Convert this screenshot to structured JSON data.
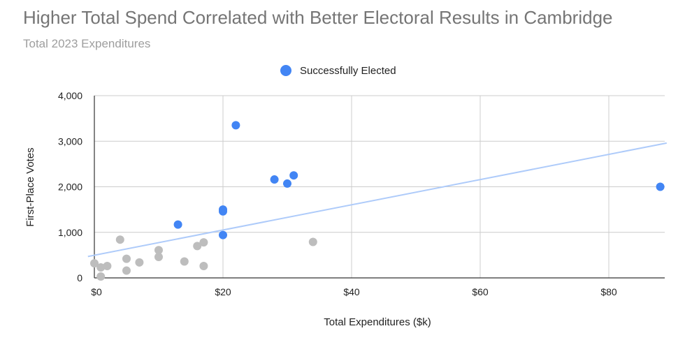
{
  "chart_data": {
    "type": "scatter",
    "title": "Higher Total Spend Correlated with Better Electoral Results in Cambridge",
    "subtitle": "Total 2023 Expenditures",
    "xlabel": "Total Expenditures ($k)",
    "ylabel": "First-Place Votes",
    "xlim": [
      0,
      89
    ],
    "ylim": [
      0,
      4000
    ],
    "x_ticks": [
      0,
      20,
      40,
      60,
      80
    ],
    "x_tick_labels": [
      "$0",
      "$20",
      "$40",
      "$60",
      "$80"
    ],
    "y_ticks": [
      0,
      1000,
      2000,
      3000,
      4000
    ],
    "y_tick_labels": [
      "0",
      "1,000",
      "2,000",
      "3,000",
      "4,000"
    ],
    "grid": true,
    "legend_position": "top",
    "legend": [
      {
        "name": "Successfully Elected",
        "color": "#4285f4"
      }
    ],
    "series": [
      {
        "name": "Successfully Elected",
        "color": "#4285f4",
        "points": [
          {
            "x": 22,
            "y": 3350
          },
          {
            "x": 31,
            "y": 2250
          },
          {
            "x": 28,
            "y": 2160
          },
          {
            "x": 30,
            "y": 2070
          },
          {
            "x": 88,
            "y": 2000
          },
          {
            "x": 20,
            "y": 1500
          },
          {
            "x": 20,
            "y": 1460
          },
          {
            "x": 13,
            "y": 1170
          },
          {
            "x": 20,
            "y": 940
          }
        ]
      },
      {
        "color": "#bdbdbd",
        "points": [
          {
            "x": 0,
            "y": 320
          },
          {
            "x": 1,
            "y": 230
          },
          {
            "x": 1,
            "y": 30
          },
          {
            "x": 2,
            "y": 260
          },
          {
            "x": 4,
            "y": 840
          },
          {
            "x": 5,
            "y": 420
          },
          {
            "x": 5,
            "y": 160
          },
          {
            "x": 7,
            "y": 340
          },
          {
            "x": 10,
            "y": 610
          },
          {
            "x": 10,
            "y": 460
          },
          {
            "x": 14,
            "y": 360
          },
          {
            "x": 16,
            "y": 700
          },
          {
            "x": 17,
            "y": 780
          },
          {
            "x": 17,
            "y": 260
          },
          {
            "x": 34,
            "y": 790
          }
        ]
      }
    ],
    "trendline": {
      "color": "#aecbfa",
      "x0": -1,
      "y0": 470,
      "x1": 89,
      "y1": 2960
    }
  }
}
